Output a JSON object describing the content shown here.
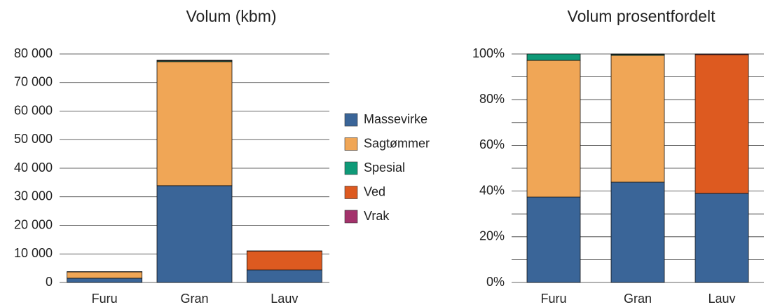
{
  "chart_data": [
    {
      "type": "stacked_bar",
      "title": "Volum (kbm)",
      "categories": [
        "Furu",
        "Gran",
        "Lauv"
      ],
      "series": [
        {
          "name": "Massevirke",
          "color": "#3a6598",
          "values": [
            1500,
            33900,
            4400
          ]
        },
        {
          "name": "Sagtømmer",
          "color": "#f0a656",
          "values": [
            2200,
            43400,
            0
          ]
        },
        {
          "name": "Spesial",
          "color": "#0f9a78",
          "values": [
            100,
            300,
            0
          ]
        },
        {
          "name": "Ved",
          "color": "#dd5a20",
          "values": [
            0,
            100,
            6600
          ]
        },
        {
          "name": "Vrak",
          "color": "#a3326b",
          "values": [
            0,
            100,
            50
          ]
        }
      ],
      "ylim": [
        0,
        80000
      ],
      "yticks": [
        0,
        {
          "value": 10000,
          "label": "10 000"
        },
        {
          "value": 20000,
          "label": "20 000"
        },
        {
          "value": 30000,
          "label": "30 000"
        },
        {
          "value": 40000,
          "label": "40 000"
        },
        {
          "value": 50000,
          "label": "50 000"
        },
        {
          "value": 60000,
          "label": "60 000"
        },
        {
          "value": 70000,
          "label": "70 000"
        },
        {
          "value": 80000,
          "label": "80 000"
        }
      ],
      "grid": true,
      "legend": "right"
    },
    {
      "type": "stacked_bar",
      "title": "Volum prosentfordelt",
      "categories": [
        "Furu",
        "Gran",
        "Lauv"
      ],
      "series": [
        {
          "color": "#3a6598",
          "values": [
            37.4,
            43.9,
            39.0
          ]
        },
        {
          "color": "#f0a656",
          "values": [
            59.8,
            55.5,
            0
          ]
        },
        {
          "color": "#0f9a78",
          "values": [
            2.8,
            0.4,
            0
          ]
        },
        {
          "color": "#dd5a20",
          "values": [
            0,
            0.1,
            60.7
          ]
        },
        {
          "color": "#a3326b",
          "values": [
            0,
            0.1,
            0.3
          ]
        }
      ],
      "ylim": [
        0,
        100
      ],
      "yticks": [
        {
          "value": 0,
          "label": "0%"
        },
        {
          "value": 20,
          "label": "20%"
        },
        {
          "value": 40,
          "label": "40%"
        },
        {
          "value": 60,
          "label": "60%"
        },
        {
          "value": 80,
          "label": "80%"
        },
        {
          "value": 100,
          "label": "100%"
        }
      ],
      "grid": true,
      "grid_ticks": [
        0,
        10,
        20,
        30,
        40,
        50,
        60,
        70,
        80,
        90,
        100
      ]
    }
  ]
}
